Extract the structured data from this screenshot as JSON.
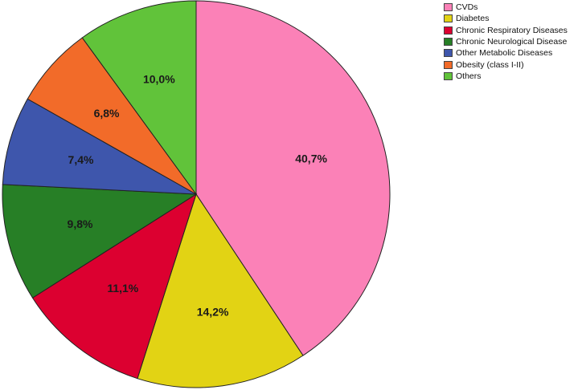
{
  "chart_data": {
    "type": "pie",
    "title": "",
    "slices": [
      {
        "name": "CVDs",
        "value": 40.7,
        "label": "40,7%",
        "color": "#fb81b7"
      },
      {
        "name": "Diabetes",
        "value": 14.2,
        "label": "14,2%",
        "color": "#e2d314"
      },
      {
        "name": "Chronic Respiratory Diseases",
        "value": 11.1,
        "label": "11,1%",
        "color": "#dc0030"
      },
      {
        "name": "Chronic Neurological Disease",
        "value": 9.8,
        "label": "9,8%",
        "color": "#277f26"
      },
      {
        "name": "Other Metabolic Diseases",
        "value": 7.4,
        "label": "7,4%",
        "color": "#3e56ac"
      },
      {
        "name": "Obesity (class I-II)",
        "value": 6.8,
        "label": "6,8%",
        "color": "#f26b29"
      },
      {
        "name": "Others",
        "value": 10.0,
        "label": "10,0%",
        "color": "#61c33a"
      }
    ],
    "legend_position": "top-right",
    "start_angle": "top",
    "direction": "clockwise"
  }
}
